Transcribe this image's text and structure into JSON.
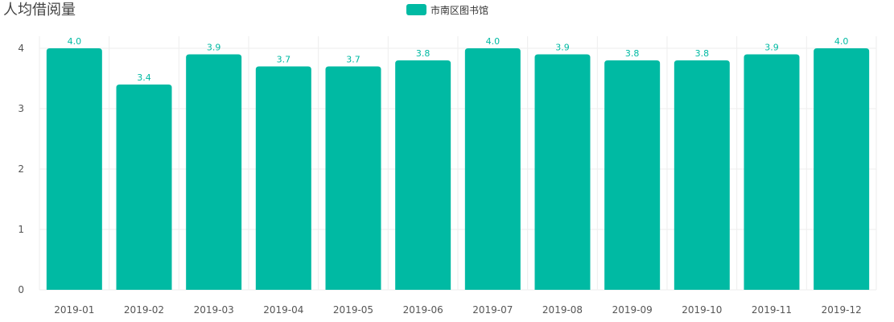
{
  "chart_data": {
    "type": "bar",
    "title": "人均借阅量",
    "categories": [
      "2019-01",
      "2019-02",
      "2019-03",
      "2019-04",
      "2019-05",
      "2019-06",
      "2019-07",
      "2019-08",
      "2019-09",
      "2019-10",
      "2019-11",
      "2019-12"
    ],
    "series": [
      {
        "name": "市南区图书馆",
        "values": [
          4.0,
          3.4,
          3.9,
          3.7,
          3.7,
          3.8,
          4.0,
          3.9,
          3.8,
          3.8,
          3.9,
          4.0
        ],
        "labels": [
          "4.0",
          "3.4",
          "3.9",
          "3.7",
          "3.7",
          "3.8",
          "4.0",
          "3.9",
          "3.8",
          "3.8",
          "3.9",
          "4.0"
        ]
      }
    ],
    "ylim": [
      0,
      4
    ],
    "yticks": [
      "0",
      "1",
      "2",
      "3",
      "4"
    ],
    "xlabel": "",
    "ylabel": "",
    "grid": true,
    "legend_position": "top-center",
    "colors": {
      "bar": "#00BAA3",
      "grid": "#EEEEEE",
      "label": "#00BAA3"
    }
  }
}
